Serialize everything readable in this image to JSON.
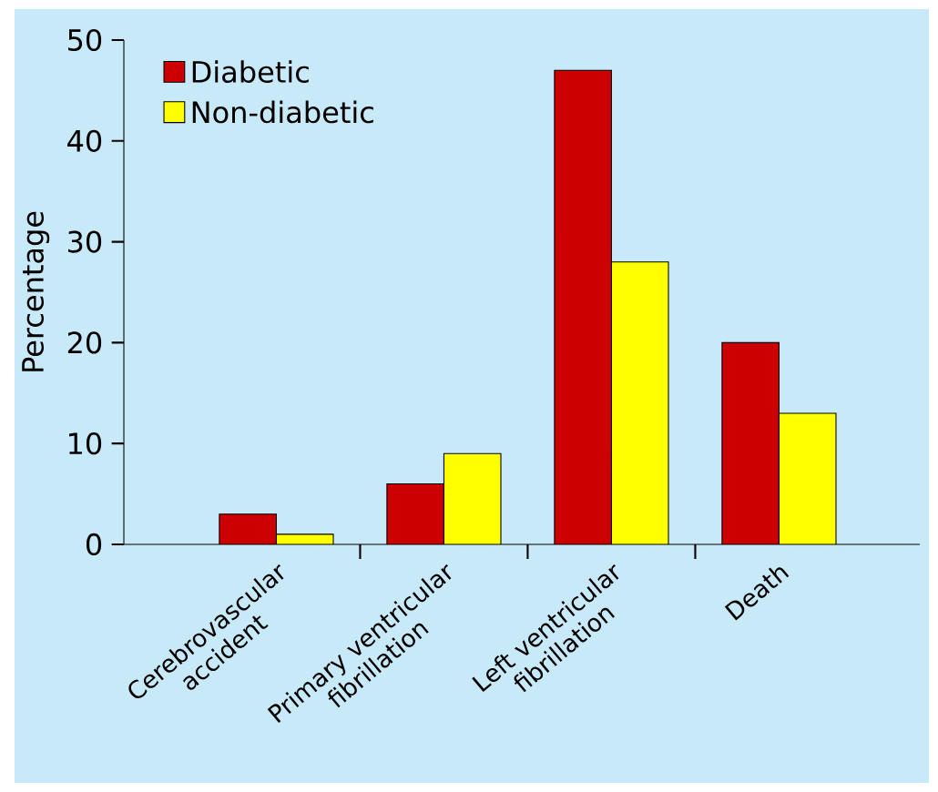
{
  "chart_data": {
    "type": "bar",
    "ylabel": "Percentage",
    "categories": [
      "Cerebrovascular accident",
      "Primary ventricular fibrillation",
      "Left ventricular fibrillation",
      "Death"
    ],
    "series": [
      {
        "name": "Diabetic",
        "color": "#cc0000",
        "values": [
          3,
          6,
          47,
          20
        ]
      },
      {
        "name": "Non-diabetic",
        "color": "#ffff00",
        "values": [
          1,
          9,
          28,
          13
        ]
      }
    ],
    "ylim": [
      0,
      50
    ],
    "yticks": [
      0,
      10,
      20,
      30,
      40,
      50
    ],
    "legend": "top left",
    "grid": false
  }
}
